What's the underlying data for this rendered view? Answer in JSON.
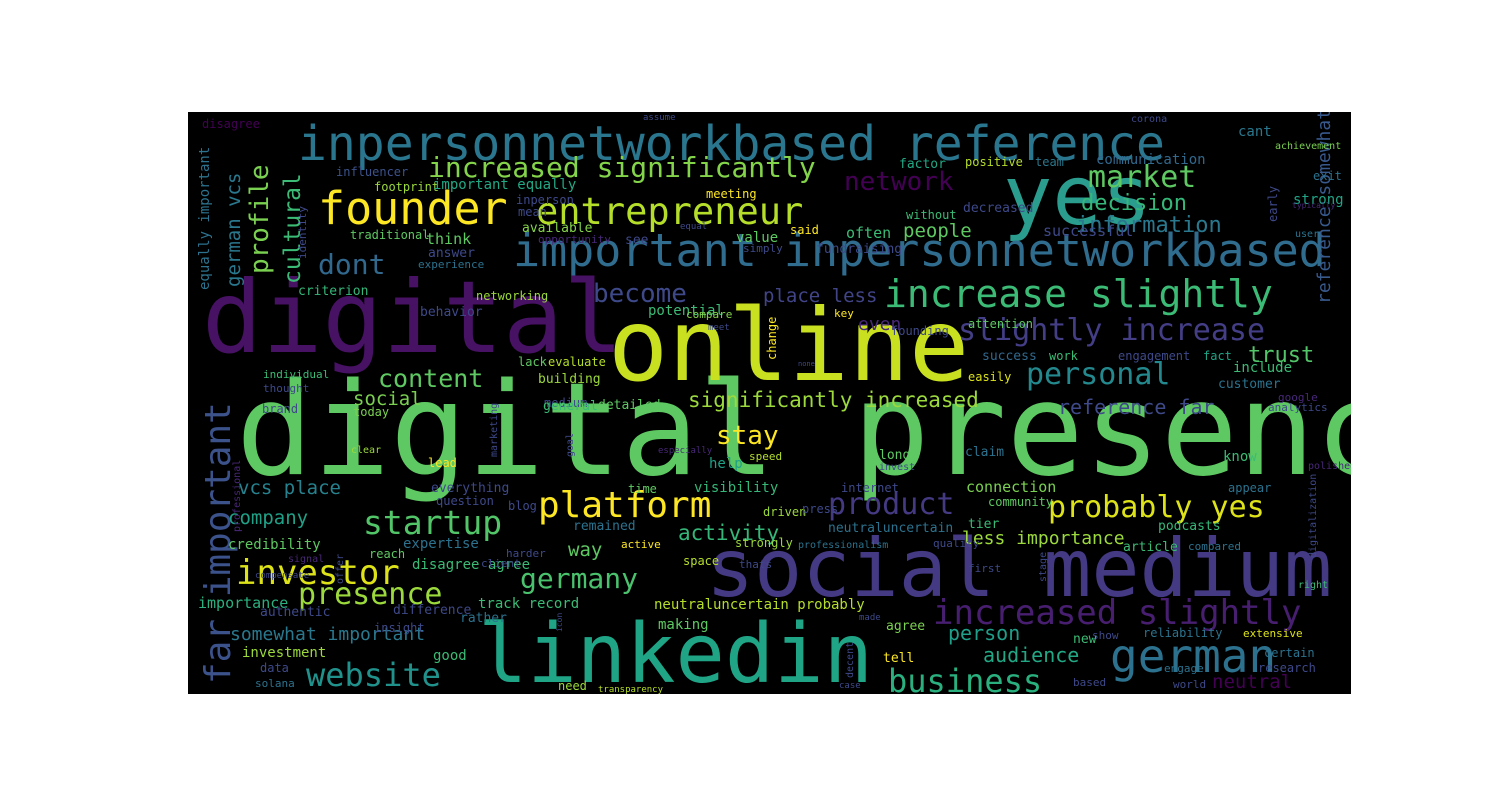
{
  "figure": {
    "background": "#000000",
    "palette": "viridis"
  },
  "words": [
    {
      "text": "digital presence",
      "color": "#5ec962"
    },
    {
      "text": "online",
      "color": "#c8e020"
    },
    {
      "text": "social medium",
      "color": "#443983"
    },
    {
      "text": "linkedin",
      "color": "#20a486"
    },
    {
      "text": "digital",
      "color": "#471164"
    },
    {
      "text": "yes",
      "color": "#2a9d8f"
    },
    {
      "text": "inpersonnetworkbased reference",
      "color": "#2a768e"
    },
    {
      "text": "important inpersonnetworkbased",
      "color": "#2f6c8e"
    },
    {
      "text": "founder",
      "color": "#fde725"
    },
    {
      "text": "entrepreneur",
      "color": "#b5de2b"
    },
    {
      "text": "increased significantly",
      "color": "#84d44b"
    },
    {
      "text": "increase slightly",
      "color": "#3bbb75"
    },
    {
      "text": "slightly increase",
      "color": "#433e85"
    },
    {
      "text": "increased slightly",
      "color": "#481f70"
    },
    {
      "text": "far important",
      "color": "#3b528b"
    },
    {
      "text": "german",
      "color": "#2c718e"
    },
    {
      "text": "platform",
      "color": "#fde725"
    },
    {
      "text": "startup",
      "color": "#52c569"
    },
    {
      "text": "investor",
      "color": "#dde318"
    },
    {
      "text": "presence",
      "color": "#9bd93c"
    },
    {
      "text": "website",
      "color": "#21918c"
    },
    {
      "text": "business",
      "color": "#2ab07f"
    },
    {
      "text": "germany",
      "color": "#4ac16d"
    },
    {
      "text": "product",
      "color": "#443983"
    },
    {
      "text": "probably yes",
      "color": "#dde318"
    },
    {
      "text": "personal",
      "color": "#23898e"
    },
    {
      "text": "market",
      "color": "#5ec962"
    },
    {
      "text": "network",
      "color": "#440154"
    },
    {
      "text": "dont",
      "color": "#31688e"
    },
    {
      "text": "become",
      "color": "#3e4989"
    },
    {
      "text": "content",
      "color": "#5ec962"
    },
    {
      "text": "profile",
      "color": "#7ad151"
    },
    {
      "text": "cultural",
      "color": "#3bbb75"
    },
    {
      "text": "german vcs",
      "color": "#2a788e"
    },
    {
      "text": "stay",
      "color": "#fde725"
    },
    {
      "text": "significantly increased",
      "color": "#9bd93c"
    },
    {
      "text": "decision",
      "color": "#35b779"
    },
    {
      "text": "information",
      "color": "#2a788e"
    },
    {
      "text": "trust",
      "color": "#52c569"
    },
    {
      "text": "reference far",
      "color": "#3e4989"
    },
    {
      "text": "reference somewhat",
      "color": "#38598c"
    },
    {
      "text": "place less",
      "color": "#414487"
    },
    {
      "text": "people",
      "color": "#5ec962"
    },
    {
      "text": "social",
      "color": "#7ad151"
    },
    {
      "text": "activity",
      "color": "#35b779"
    },
    {
      "text": "vcs place",
      "color": "#26828e"
    },
    {
      "text": "company",
      "color": "#1fa187"
    },
    {
      "text": "way",
      "color": "#5ec962"
    },
    {
      "text": "less importance",
      "color": "#9bd93c"
    },
    {
      "text": "somewhat important",
      "color": "#2a788e"
    },
    {
      "text": "person",
      "color": "#1f9e89"
    },
    {
      "text": "audience",
      "color": "#22a884"
    },
    {
      "text": "neutral",
      "color": "#440154"
    },
    {
      "text": "even",
      "color": "#482878"
    },
    {
      "text": "equally important",
      "color": "#2c728e"
    },
    {
      "text": "disagree",
      "color": "#440154"
    },
    {
      "text": "communication",
      "color": "#31688e"
    },
    {
      "text": "cant",
      "color": "#2a788e"
    },
    {
      "text": "achievement",
      "color": "#7ad151"
    },
    {
      "text": "exit",
      "color": "#2c728e"
    },
    {
      "text": "strong",
      "color": "#20a486"
    },
    {
      "text": "successful",
      "color": "#3e4989"
    },
    {
      "text": "value",
      "color": "#5ec962"
    },
    {
      "text": "influencer",
      "color": "#3b528b"
    },
    {
      "text": "footprint",
      "color": "#9bd93c"
    },
    {
      "text": "important equally",
      "color": "#22a884"
    },
    {
      "text": "meeting",
      "color": "#fde725"
    },
    {
      "text": "factor",
      "color": "#22a884"
    },
    {
      "text": "positive",
      "color": "#b5de2b"
    },
    {
      "text": "team",
      "color": "#2a788e"
    },
    {
      "text": "decreased",
      "color": "#3e4989"
    },
    {
      "text": "think",
      "color": "#5ec962"
    },
    {
      "text": "often",
      "color": "#3bbb75"
    },
    {
      "text": "fundraising",
      "color": "#3e4989"
    },
    {
      "text": "available",
      "color": "#84d44b"
    },
    {
      "text": "said",
      "color": "#fde725"
    },
    {
      "text": "see",
      "color": "#3e4989"
    },
    {
      "text": "opportunity",
      "color": "#482878"
    },
    {
      "text": "traditional",
      "color": "#5ec962"
    },
    {
      "text": "answer",
      "color": "#3e4989"
    },
    {
      "text": "experience",
      "color": "#2c728e"
    },
    {
      "text": "criterion",
      "color": "#35b779"
    },
    {
      "text": "behavior",
      "color": "#3e4989"
    },
    {
      "text": "networking",
      "color": "#9bd93c"
    },
    {
      "text": "potential",
      "color": "#3bbb75"
    },
    {
      "text": "compare",
      "color": "#84d44b"
    },
    {
      "text": "attention",
      "color": "#5ec962"
    },
    {
      "text": "change",
      "color": "#fde725"
    },
    {
      "text": "individual",
      "color": "#3bbb75"
    },
    {
      "text": "thought",
      "color": "#3e4989"
    },
    {
      "text": "brand",
      "color": "#3e4989"
    },
    {
      "text": "today",
      "color": "#7ad151"
    },
    {
      "text": "lack",
      "color": "#5ec962"
    },
    {
      "text": "evaluate",
      "color": "#b5de2b"
    },
    {
      "text": "building",
      "color": "#9bd93c"
    },
    {
      "text": "medium",
      "color": "#3e4989"
    },
    {
      "text": "general",
      "color": "#3bbb75"
    },
    {
      "text": "detailed",
      "color": "#5ec962"
    },
    {
      "text": "success",
      "color": "#31688e"
    },
    {
      "text": "work",
      "color": "#3bbb75"
    },
    {
      "text": "engagement",
      "color": "#3e4989"
    },
    {
      "text": "fact",
      "color": "#20a486"
    },
    {
      "text": "include",
      "color": "#3bbb75"
    },
    {
      "text": "customer",
      "color": "#2c728e"
    },
    {
      "text": "easily",
      "color": "#dde318"
    },
    {
      "text": "analytics",
      "color": "#3e4989"
    },
    {
      "text": "google",
      "color": "#482878"
    },
    {
      "text": "know",
      "color": "#3bbb75"
    },
    {
      "text": "claim",
      "color": "#2c728e"
    },
    {
      "text": "long",
      "color": "#5ec962"
    },
    {
      "text": "help",
      "color": "#1fa187"
    },
    {
      "text": "speed",
      "color": "#b5de2b"
    },
    {
      "text": "lead",
      "color": "#fde725"
    },
    {
      "text": "clear",
      "color": "#9bd93c"
    },
    {
      "text": "marketing",
      "color": "#3e4989"
    },
    {
      "text": "goal",
      "color": "#3e4989"
    },
    {
      "text": "especially",
      "color": "#482878"
    },
    {
      "text": "visibility",
      "color": "#35b779"
    },
    {
      "text": "time",
      "color": "#5ec962"
    },
    {
      "text": "internet",
      "color": "#3e4989"
    },
    {
      "text": "invest",
      "color": "#3e4989"
    },
    {
      "text": "connection",
      "color": "#7ad151"
    },
    {
      "text": "appear",
      "color": "#2c728e"
    },
    {
      "text": "everything",
      "color": "#3e4989"
    },
    {
      "text": "question",
      "color": "#3e4989"
    },
    {
      "text": "blog",
      "color": "#3e4989"
    },
    {
      "text": "remained",
      "color": "#2c728e"
    },
    {
      "text": "driven",
      "color": "#9bd93c"
    },
    {
      "text": "press",
      "color": "#3e4989"
    },
    {
      "text": "neutraluncertain",
      "color": "#2c728e"
    },
    {
      "text": "community",
      "color": "#5ec962"
    },
    {
      "text": "tier",
      "color": "#3bbb75"
    },
    {
      "text": "podcasts",
      "color": "#35b779"
    },
    {
      "text": "credibility",
      "color": "#5ec962"
    },
    {
      "text": "expertise",
      "color": "#2c728e"
    },
    {
      "text": "disagree agree",
      "color": "#3bbb75"
    },
    {
      "text": "strongly",
      "color": "#9bd93c"
    },
    {
      "text": "active",
      "color": "#fde725"
    },
    {
      "text": "professionalism",
      "color": "#2c728e"
    },
    {
      "text": "quality",
      "color": "#3e4989"
    },
    {
      "text": "article",
      "color": "#3bbb75"
    },
    {
      "text": "compared",
      "color": "#2c728e"
    },
    {
      "text": "reach",
      "color": "#5ec962"
    },
    {
      "text": "signal",
      "color": "#482878"
    },
    {
      "text": "client",
      "color": "#3e4989"
    },
    {
      "text": "space",
      "color": "#b5de2b"
    },
    {
      "text": "thats",
      "color": "#3e4989"
    },
    {
      "text": "first",
      "color": "#3e4989"
    },
    {
      "text": "importance",
      "color": "#2ab07f"
    },
    {
      "text": "difference",
      "color": "#3e4989"
    },
    {
      "text": "authentic",
      "color": "#3e4989"
    },
    {
      "text": "track record",
      "color": "#3bbb75"
    },
    {
      "text": "neutraluncertain probably",
      "color": "#b5de2b"
    },
    {
      "text": "rather",
      "color": "#2c728e"
    },
    {
      "text": "making",
      "color": "#5ec962"
    },
    {
      "text": "agree",
      "color": "#7ad151"
    },
    {
      "text": "reliability",
      "color": "#2c728e"
    },
    {
      "text": "extensive",
      "color": "#dde318"
    },
    {
      "text": "show",
      "color": "#3e4989"
    },
    {
      "text": "new",
      "color": "#3bbb75"
    },
    {
      "text": "investment",
      "color": "#9bd93c"
    },
    {
      "text": "good",
      "color": "#3bbb75"
    },
    {
      "text": "data",
      "color": "#3e4989"
    },
    {
      "text": "solana",
      "color": "#2c728e"
    },
    {
      "text": "insight",
      "color": "#3e4989"
    },
    {
      "text": "tell",
      "color": "#fde725"
    },
    {
      "text": "certain",
      "color": "#2c728e"
    },
    {
      "text": "research",
      "color": "#3e4989"
    },
    {
      "text": "engage",
      "color": "#2c728e"
    },
    {
      "text": "world",
      "color": "#3e4989"
    },
    {
      "text": "based",
      "color": "#3e4989"
    },
    {
      "text": "need",
      "color": "#9bd93c"
    },
    {
      "text": "transparency",
      "color": "#b5de2b"
    },
    {
      "text": "decent",
      "color": "#3e4989"
    },
    {
      "text": "made",
      "color": "#3e4989"
    },
    {
      "text": "case",
      "color": "#3e4989"
    },
    {
      "text": "right",
      "color": "#3bbb75"
    },
    {
      "text": "compensate",
      "color": "#3e4989"
    },
    {
      "text": "stage",
      "color": "#3e4989"
    },
    {
      "text": "assume",
      "color": "#3e4989"
    },
    {
      "text": "corona",
      "color": "#3e4989"
    },
    {
      "text": "typically",
      "color": "#482878"
    },
    {
      "text": "user",
      "color": "#2c728e"
    },
    {
      "text": "polished",
      "color": "#482878"
    },
    {
      "text": "simply",
      "color": "#3e4989"
    },
    {
      "text": "key",
      "color": "#fde725"
    },
    {
      "text": "mean",
      "color": "#3e4989"
    },
    {
      "text": "equal",
      "color": "#3e4989"
    },
    {
      "text": "inperson",
      "color": "#3e4989"
    },
    {
      "text": "identity",
      "color": "#3e4989"
    },
    {
      "text": "early",
      "color": "#3e4989"
    },
    {
      "text": "without",
      "color": "#3bbb75"
    },
    {
      "text": "founding",
      "color": "#3e4989"
    },
    {
      "text": "meet",
      "color": "#3e4989"
    },
    {
      "text": "none",
      "color": "#3e4989"
    },
    {
      "text": "professional",
      "color": "#482878"
    },
    {
      "text": "digitalization",
      "color": "#3e4989"
    },
    {
      "text": "offer",
      "color": "#3e4989"
    },
    {
      "text": "harder",
      "color": "#3e4989"
    },
    {
      "text": "icon",
      "color": "#3e4989"
    }
  ]
}
